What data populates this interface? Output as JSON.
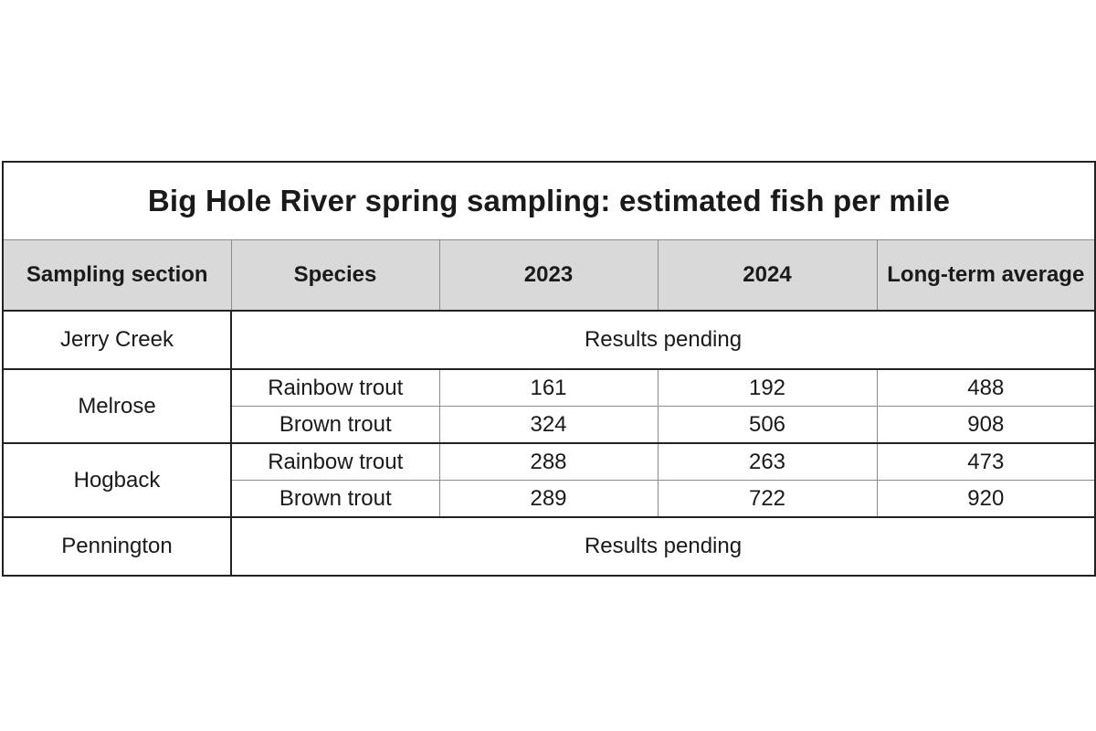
{
  "title": "Big Hole River spring sampling: estimated fish per mile",
  "columns": {
    "section": "Sampling section",
    "species": "Species",
    "y2023": "2023",
    "y2024": "2024",
    "avg": "Long-term average"
  },
  "rows": {
    "jerry_creek": {
      "section": "Jerry Creek",
      "status": "Results pending"
    },
    "melrose": {
      "section": "Melrose",
      "rainbow": {
        "species": "Rainbow trout",
        "y2023": "161",
        "y2024": "192",
        "avg": "488"
      },
      "brown": {
        "species": "Brown trout",
        "y2023": "324",
        "y2024": "506",
        "avg": "908"
      }
    },
    "hogback": {
      "section": "Hogback",
      "rainbow": {
        "species": "Rainbow trout",
        "y2023": "288",
        "y2024": "263",
        "avg": "473"
      },
      "brown": {
        "species": "Brown trout",
        "y2023": "289",
        "y2024": "722",
        "avg": "920"
      }
    },
    "pennington": {
      "section": "Pennington",
      "status": "Results pending"
    }
  }
}
